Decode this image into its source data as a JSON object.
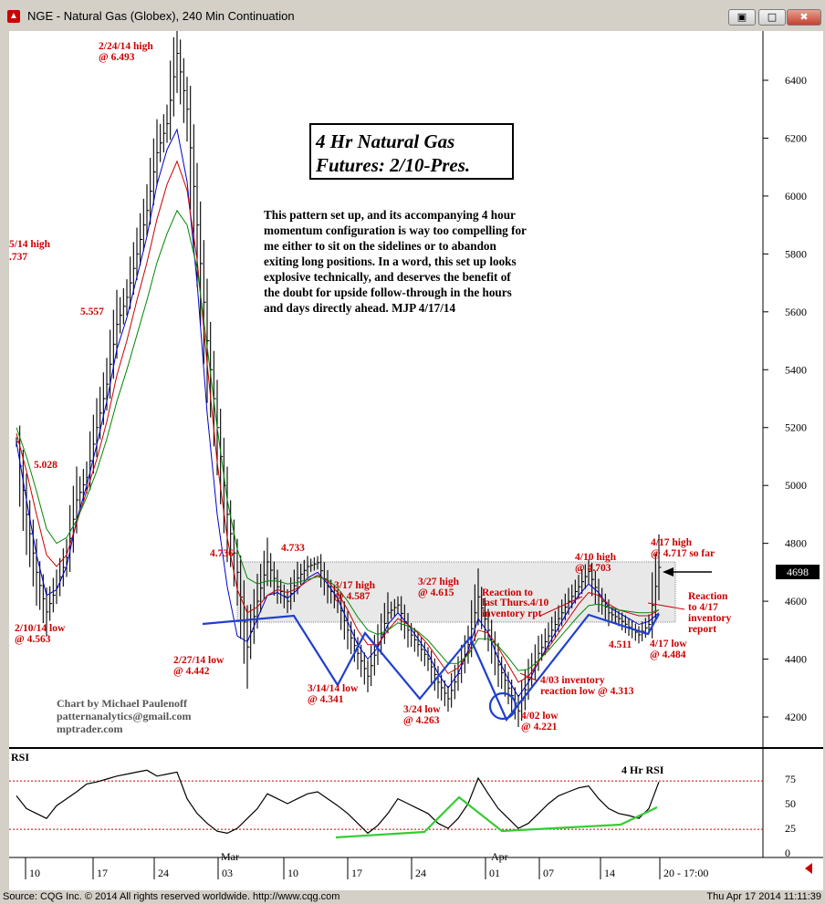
{
  "window": {
    "title": "NGE - Natural Gas (Globex), 240 Min Continuation",
    "icon": "chart-app-icon",
    "buttons": {
      "restore": "▣",
      "minimize": "▬",
      "maximize": "□",
      "close": "✖"
    }
  },
  "status": {
    "source": "Source: CQG Inc. © 2014 All rights reserved worldwide. http://www.cqg.com",
    "timestamp": "Thu Apr 17 2014 11:11:39"
  },
  "colors": {
    "annotation_red": "#cc0000",
    "blue_ma": "#0000cc",
    "red_ma": "#cc0000",
    "green_ma": "#008800",
    "trendline_blue": "#1f3fd0",
    "rsi_green": "#33cc33",
    "price_bar": "#000000"
  },
  "chart_data": [
    {
      "type": "ohlc-bar",
      "title": "4 Hr Natural Gas Futures:  2/10-Pres.",
      "title_line1": "4 Hr Natural Gas",
      "title_line2": "Futures:  2/10-Pres.",
      "commentary": [
        "This pattern set up, and its accompanying 4 hour",
        "momentum configuration is way too compelling for",
        "me either to sit on the sidelines or to abandon",
        "exiting long positions. In a word, this set up looks",
        "explosive technically, and deserves the benefit of",
        "the doubt for upside follow-through in the hours",
        "and days directly ahead. MJP  4/17/14"
      ],
      "credit": [
        "Chart by Michael Paulenoff",
        "patternanalytics@gmail.com",
        "mptrader.com"
      ],
      "ylim": [
        4100,
        6550
      ],
      "y_ticks": [
        "6400",
        "6200",
        "6000",
        "5800",
        "5600",
        "5400",
        "5200",
        "5000",
        "4800",
        "4600",
        "4400",
        "4200"
      ],
      "last_price": "4698",
      "month_labels": [
        "Mar",
        "Apr"
      ],
      "x_tick_labels": [
        "10",
        "17",
        "24",
        "03",
        "10",
        "17",
        "24",
        "01",
        "07",
        "14",
        "20 - 17:00"
      ],
      "series": [
        {
          "name": "price",
          "values": [
            5150,
            4900,
            4700,
            4563,
            4650,
            4750,
            4950,
            5028,
            5200,
            5350,
            5557,
            5650,
            5800,
            5950,
            6150,
            6250,
            6493,
            6300,
            5900,
            5500,
            5200,
            4900,
            4700,
            4442,
            4600,
            4736,
            4650,
            4600,
            4680,
            4720,
            4733,
            4650,
            4600,
            4500,
            4420,
            4341,
            4450,
            4560,
            4587,
            4500,
            4450,
            4400,
            4320,
            4263,
            4350,
            4450,
            4615,
            4500,
            4380,
            4300,
            4221,
            4330,
            4420,
            4480,
            4540,
            4600,
            4650,
            4703,
            4620,
            4560,
            4540,
            4511,
            4484,
            4520,
            4717
          ]
        },
        {
          "name": "blue MA",
          "values": [
            5150,
            4950,
            4760,
            4620,
            4640,
            4720,
            4880,
            5000,
            5140,
            5290,
            5470,
            5580,
            5720,
            5860,
            6040,
            6160,
            6230,
            6050,
            5700,
            5250,
            4900,
            4650,
            4480,
            4460,
            4540,
            4620,
            4630,
            4610,
            4640,
            4680,
            4700,
            4660,
            4610,
            4530,
            4450,
            4400,
            4440,
            4520,
            4560,
            4520,
            4470,
            4420,
            4350,
            4300,
            4350,
            4430,
            4540,
            4490,
            4400,
            4330,
            4270,
            4320,
            4390,
            4450,
            4510,
            4570,
            4620,
            4660,
            4630,
            4580,
            4560,
            4540,
            4520,
            4530,
            4560
          ]
        },
        {
          "name": "red MA",
          "values": [
            5180,
            5050,
            4900,
            4760,
            4720,
            4760,
            4870,
            4980,
            5090,
            5220,
            5380,
            5500,
            5640,
            5770,
            5920,
            6040,
            6120,
            6020,
            5780,
            5420,
            5080,
            4820,
            4640,
            4560,
            4580,
            4620,
            4640,
            4630,
            4645,
            4670,
            4690,
            4670,
            4630,
            4570,
            4500,
            4450,
            4450,
            4500,
            4540,
            4520,
            4490,
            4450,
            4400,
            4350,
            4370,
            4420,
            4500,
            4490,
            4440,
            4380,
            4320,
            4340,
            4390,
            4440,
            4490,
            4540,
            4590,
            4630,
            4620,
            4590,
            4570,
            4560,
            4550,
            4550,
            4570
          ]
        },
        {
          "name": "green MA",
          "values": [
            5200,
            5100,
            4980,
            4850,
            4800,
            4820,
            4880,
            4960,
            5050,
            5160,
            5290,
            5400,
            5520,
            5640,
            5770,
            5870,
            5950,
            5900,
            5750,
            5480,
            5200,
            4950,
            4780,
            4680,
            4660,
            4670,
            4670,
            4660,
            4665,
            4675,
            4685,
            4675,
            4645,
            4600,
            4545,
            4500,
            4485,
            4500,
            4525,
            4515,
            4495,
            4465,
            4425,
            4385,
            4385,
            4415,
            4470,
            4470,
            4445,
            4405,
            4360,
            4365,
            4395,
            4430,
            4470,
            4510,
            4550,
            4585,
            4590,
            4580,
            4570,
            4565,
            4560,
            4560,
            4570
          ]
        }
      ],
      "annotations": [
        {
          "text": "2/24/14 high",
          "text2": "@ 6.493"
        },
        {
          "text": "5/14 high",
          "text2": ".737"
        },
        {
          "text": "5.557"
        },
        {
          "text": "5.028"
        },
        {
          "text": "2/10/14 low",
          "text2": "@ 4.563"
        },
        {
          "text": "4.736"
        },
        {
          "text": "2/27/14 low",
          "text2": "@ 4.442"
        },
        {
          "text": "4.733"
        },
        {
          "text": "3/17 high",
          "text2": "@ 4.587"
        },
        {
          "text": "3/14/14 low",
          "text2": "@ 4.341"
        },
        {
          "text": "3/27 high",
          "text2": "@ 4.615"
        },
        {
          "text": "3/24 low",
          "text2": "@ 4.263"
        },
        {
          "text": "Reaction to",
          "text2": "last Thurs.4/10",
          "text3": "inventory rpt"
        },
        {
          "text": "4/03 inventory",
          "text2": "reaction low @ 4.313"
        },
        {
          "text": "4/02 low",
          "text2": "@ 4.221"
        },
        {
          "text": "4/10 high",
          "text2": "@ 4.703"
        },
        {
          "text": "4.511"
        },
        {
          "text": "4/17 low",
          "text2": "@ 4.484"
        },
        {
          "text": "4/17 high",
          "text2": "@ 4.717 so far"
        },
        {
          "text": "Reaction",
          "text2": "to 4/17",
          "text3": "inventory",
          "text4": "report"
        }
      ]
    },
    {
      "type": "line",
      "title": "RSI",
      "label": "4 Hr RSI",
      "ylim": [
        0,
        100
      ],
      "y_ticks": [
        "75",
        "50",
        "25",
        "0"
      ],
      "reference_lines": [
        73,
        24
      ],
      "series": [
        {
          "name": "RSI",
          "values": [
            58,
            45,
            40,
            35,
            48,
            55,
            62,
            70,
            72,
            75,
            78,
            80,
            82,
            84,
            78,
            80,
            82,
            55,
            40,
            30,
            22,
            20,
            25,
            35,
            45,
            60,
            55,
            50,
            55,
            60,
            62,
            55,
            48,
            40,
            30,
            20,
            28,
            40,
            55,
            50,
            45,
            40,
            30,
            25,
            35,
            50,
            76,
            60,
            45,
            35,
            25,
            30,
            40,
            50,
            58,
            62,
            66,
            68,
            55,
            45,
            40,
            38,
            35,
            45,
            72
          ]
        },
        {
          "name": "RSI trend",
          "values": [
            18,
            22,
            55,
            28,
            22,
            25,
            27,
            30,
            33,
            38,
            45
          ]
        }
      ]
    }
  ]
}
